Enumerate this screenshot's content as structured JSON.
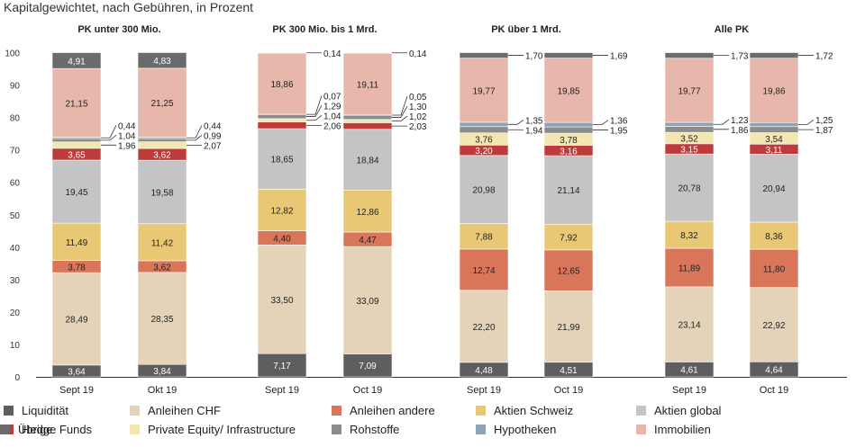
{
  "chart_data": {
    "type": "bar",
    "stacked": true,
    "subtitle": "Kapitalgewichtet, nach Gebühren, in Prozent",
    "ylim": [
      0,
      100
    ],
    "yticks": [
      "0",
      "10",
      "20",
      "30",
      "40",
      "50",
      "60",
      "70",
      "80",
      "90",
      "100"
    ],
    "series": [
      {
        "key": "liq",
        "name": "Liquidität",
        "color": "#5e5e5e"
      },
      {
        "key": "chf",
        "name": "Anleihen CHF",
        "color": "#e4d2b9"
      },
      {
        "key": "and",
        "name": "Anleihen andere",
        "color": "#d9765a"
      },
      {
        "key": "ach",
        "name": "Aktien Schweiz",
        "color": "#e8c874"
      },
      {
        "key": "agl",
        "name": "Aktien global",
        "color": "#c4c4c4"
      },
      {
        "key": "hf",
        "name": "Hedge Funds",
        "color": "#be3b3b"
      },
      {
        "key": "pe",
        "name": "Private Equity/ Infrastructure",
        "color": "#f2e7b3"
      },
      {
        "key": "roh",
        "name": "Rohstoffe",
        "color": "#8c8c8c"
      },
      {
        "key": "hyp",
        "name": "Hypotheken",
        "color": "#8fa3b2"
      },
      {
        "key": "imm",
        "name": "Immobilien",
        "color": "#e7b7ab"
      },
      {
        "key": "ueb",
        "name": "Übrige",
        "color": "#6b6b6b"
      }
    ],
    "groups": [
      {
        "title": "PK unter 300 Mio.",
        "bars": [
          {
            "label": "Sept 19",
            "values": [
              3.64,
              28.49,
              3.78,
              11.49,
              19.45,
              3.65,
              1.96,
              1.04,
              0.44,
              21.15,
              4.91
            ],
            "texts": [
              "3,64",
              "28,49",
              "3,78",
              "11,49",
              "19,45",
              "3,65",
              "1,96",
              "1,04",
              "0,44",
              "21,15",
              "4,91"
            ]
          },
          {
            "label": "Okt 19",
            "values": [
              3.84,
              28.35,
              3.62,
              11.42,
              19.58,
              3.62,
              2.07,
              0.99,
              0.44,
              21.25,
              4.83
            ],
            "texts": [
              "3,84",
              "28,35",
              "3,62",
              "11,42",
              "19,58",
              "3,62",
              "2,07",
              "0,99",
              "0,44",
              "21,25",
              "4,83"
            ]
          }
        ]
      },
      {
        "title": "PK 300 Mio. bis 1 Mrd.",
        "bars": [
          {
            "label": "Sept 19",
            "values": [
              7.17,
              33.5,
              4.4,
              12.82,
              18.65,
              2.06,
              1.04,
              1.29,
              0.07,
              18.86,
              0.14
            ],
            "texts": [
              "7,17",
              "33,50",
              "4,40",
              "12,82",
              "18,65",
              "2,06",
              "1,04",
              "1,29",
              "0,07",
              "18,86",
              "0,14"
            ]
          },
          {
            "label": "Oct 19",
            "values": [
              7.09,
              33.09,
              4.47,
              12.86,
              18.84,
              2.03,
              1.02,
              1.3,
              0.05,
              19.11,
              0.14
            ],
            "texts": [
              "7,09",
              "33,09",
              "4,47",
              "12,86",
              "18,84",
              "2,03",
              "1,02",
              "1,30",
              "0,05",
              "19,11",
              "0,14"
            ]
          }
        ]
      },
      {
        "title": "PK über 1 Mrd.",
        "bars": [
          {
            "label": "Sept 19",
            "values": [
              4.48,
              22.2,
              12.74,
              7.88,
              20.98,
              3.2,
              3.76,
              1.94,
              1.35,
              19.77,
              1.7
            ],
            "texts": [
              "4,48",
              "22,20",
              "12,74",
              "7,88",
              "20,98",
              "3,20",
              "3,76",
              "1,94",
              "1,35",
              "19,77",
              "1,70"
            ]
          },
          {
            "label": "Oct 19",
            "values": [
              4.51,
              21.99,
              12.65,
              7.92,
              21.14,
              3.16,
              3.78,
              1.95,
              1.36,
              19.85,
              1.69
            ],
            "texts": [
              "4,51",
              "21,99",
              "12,65",
              "7,92",
              "21,14",
              "3,16",
              "3,78",
              "1,95",
              "1,36",
              "19,85",
              "1,69"
            ]
          }
        ]
      },
      {
        "title": "Alle PK",
        "bars": [
          {
            "label": "Sept 19",
            "values": [
              4.61,
              23.14,
              11.89,
              8.32,
              20.78,
              3.15,
              3.52,
              1.86,
              1.23,
              19.77,
              1.73
            ],
            "texts": [
              "4,61",
              "23,14",
              "11,89",
              "8,32",
              "20,78",
              "3,15",
              "3,52",
              "1,86",
              "1,23",
              "19,77",
              "1,73"
            ]
          },
          {
            "label": "Oct 19",
            "values": [
              4.64,
              22.92,
              11.8,
              8.36,
              20.94,
              3.11,
              3.54,
              1.87,
              1.25,
              19.86,
              1.72
            ],
            "texts": [
              "4,64",
              "22,92",
              "11,80",
              "8,36",
              "20,94",
              "3,11",
              "3,54",
              "1,87",
              "1,25",
              "19,86",
              "1,72"
            ]
          }
        ]
      }
    ]
  }
}
